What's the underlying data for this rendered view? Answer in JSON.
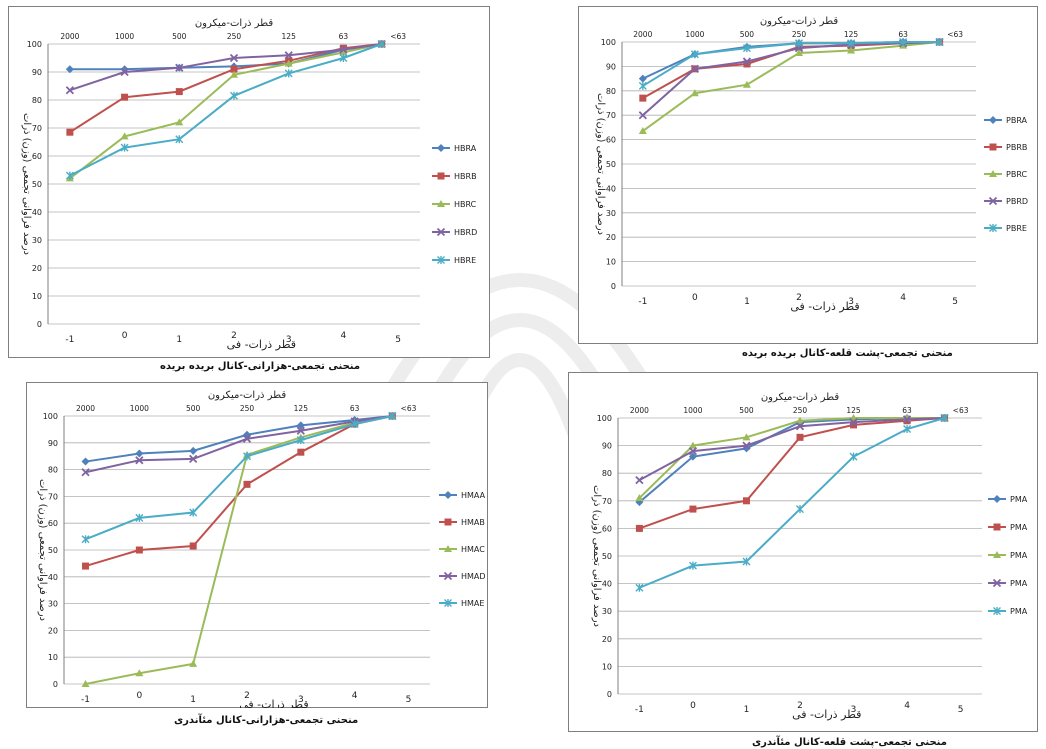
{
  "chart_data": [
    {
      "type": "line",
      "top_axis_title": "قطر ذرات-میکرون",
      "bottom_axis_title": "قطر ذرات- فی",
      "ylabel": "درصد فراوانی تجمعی (وزن) ذرات",
      "caption": "منحنی تجمعی-هزارانی-کانال بریده بریده",
      "top_ticks": [
        "2000",
        "1000",
        "500",
        "250",
        "125",
        "63",
        "<63"
      ],
      "x": [
        -1,
        0,
        1,
        2,
        3,
        4,
        5
      ],
      "x_ticks": [
        "-1",
        "0",
        "1",
        "2",
        "3",
        "4",
        "5"
      ],
      "ylim": [
        0,
        100
      ],
      "y_ticks": [
        "0",
        "10",
        "20",
        "30",
        "40",
        "50",
        "60",
        "70",
        "80",
        "90",
        "100"
      ],
      "grid": true,
      "legend_position": "right",
      "series": [
        {
          "name": "HBRA",
          "color": "#4f81bd",
          "marker": "diamond",
          "x": [
            -1,
            0,
            1,
            2,
            3,
            4,
            4.7
          ],
          "values": [
            91,
            91,
            91.5,
            92,
            93,
            98,
            100
          ]
        },
        {
          "name": "HBRB",
          "color": "#c0504d",
          "marker": "square",
          "x": [
            -1,
            0,
            1,
            2,
            3,
            4,
            4.7
          ],
          "values": [
            68.5,
            81,
            83,
            91,
            94,
            98.5,
            100
          ]
        },
        {
          "name": "HBRC",
          "color": "#9bbb59",
          "marker": "triangle",
          "x": [
            -1,
            0,
            1,
            2,
            3,
            4,
            4.7
          ],
          "values": [
            52,
            67,
            72,
            89,
            93,
            97,
            100
          ]
        },
        {
          "name": "HBRD",
          "color": "#8064a2",
          "marker": "cross",
          "x": [
            -1,
            0,
            1,
            2,
            3,
            4,
            4.7
          ],
          "values": [
            83.5,
            90,
            91.5,
            95,
            96,
            98,
            100
          ]
        },
        {
          "name": "HBRE",
          "color": "#4bacc6",
          "marker": "star",
          "x": [
            -1,
            0,
            1,
            2,
            3,
            4,
            4.7
          ],
          "values": [
            53,
            63,
            66,
            81.5,
            89.5,
            95,
            100
          ]
        }
      ]
    },
    {
      "type": "line",
      "top_axis_title": "قطر ذرات-میکرون",
      "bottom_axis_title": "قطر ذرات- فی",
      "ylabel": "درصد فراوانی تجمعی (وزن) ذرات",
      "caption": "منحنی تجمعی-پشت قلعه-کانال بریده بریده",
      "top_ticks": [
        "2000",
        "1000",
        "500",
        "250",
        "125",
        "63",
        "<63"
      ],
      "x": [
        -1,
        0,
        1,
        2,
        3,
        4,
        5
      ],
      "x_ticks": [
        "-1",
        "0",
        "1",
        "2",
        "3",
        "4",
        "5"
      ],
      "ylim": [
        0,
        100
      ],
      "y_ticks": [
        "0",
        "10",
        "20",
        "30",
        "40",
        "50",
        "60",
        "70",
        "80",
        "90",
        "100"
      ],
      "grid": true,
      "legend_position": "right",
      "series": [
        {
          "name": "PBRA",
          "color": "#4f81bd",
          "marker": "diamond",
          "x": [
            -1,
            0,
            1,
            2,
            3,
            4,
            4.7
          ],
          "values": [
            85,
            95,
            98,
            99.5,
            99.5,
            100,
            100
          ]
        },
        {
          "name": "PBRB",
          "color": "#c0504d",
          "marker": "square",
          "x": [
            -1,
            0,
            1,
            2,
            3,
            4,
            4.7
          ],
          "values": [
            77,
            89,
            91,
            98,
            98.5,
            99.5,
            100
          ]
        },
        {
          "name": "PBRC",
          "color": "#9bbb59",
          "marker": "triangle",
          "x": [
            -1,
            0,
            1,
            2,
            3,
            4,
            4.7
          ],
          "values": [
            63.5,
            79,
            82.5,
            95.5,
            96.5,
            98.5,
            100
          ]
        },
        {
          "name": "PBRD",
          "color": "#8064a2",
          "marker": "cross",
          "x": [
            -1,
            0,
            1,
            2,
            3,
            4,
            4.7
          ],
          "values": [
            70,
            89,
            92,
            97.5,
            99,
            99.5,
            100
          ]
        },
        {
          "name": "PBRE",
          "color": "#4bacc6",
          "marker": "star",
          "x": [
            -1,
            0,
            1,
            2,
            3,
            4,
            4.7
          ],
          "values": [
            82,
            95,
            97.5,
            99.5,
            99.5,
            100,
            100
          ]
        }
      ]
    },
    {
      "type": "line",
      "top_axis_title": "قطر ذرات-میکرون",
      "bottom_axis_title": "قطر ذرات- فی",
      "ylabel": "درصد فراوانی تجمعی (وزن) ذرات",
      "caption": "منحنی تجمعی-هزارانی-کانال مئآندری",
      "top_ticks": [
        "2000",
        "1000",
        "500",
        "250",
        "125",
        "63",
        "<63"
      ],
      "x": [
        -1,
        0,
        1,
        2,
        3,
        4,
        5
      ],
      "x_ticks": [
        "-1",
        "0",
        "1",
        "2",
        "3",
        "4",
        "5"
      ],
      "ylim": [
        0,
        100
      ],
      "y_ticks": [
        "0",
        "10",
        "20",
        "30",
        "40",
        "50",
        "60",
        "70",
        "80",
        "90",
        "100"
      ],
      "grid": true,
      "legend_position": "right",
      "series": [
        {
          "name": "HMAA",
          "color": "#4f81bd",
          "marker": "diamond",
          "x": [
            -1,
            0,
            1,
            2,
            3,
            4,
            4.7
          ],
          "values": [
            83,
            86,
            87,
            93,
            96.5,
            98.5,
            100
          ]
        },
        {
          "name": "HMAB",
          "color": "#c0504d",
          "marker": "square",
          "x": [
            -1,
            0,
            1,
            2,
            3,
            4,
            4.7
          ],
          "values": [
            44,
            50,
            51.5,
            74.5,
            86.5,
            97,
            100
          ]
        },
        {
          "name": "HMAC",
          "color": "#9bbb59",
          "marker": "triangle",
          "x": [
            -1,
            0,
            1,
            2,
            3,
            4,
            4.7
          ],
          "values": [
            0,
            4,
            7.5,
            85.5,
            92,
            97.5,
            100
          ]
        },
        {
          "name": "HMAD",
          "color": "#8064a2",
          "marker": "cross",
          "x": [
            -1,
            0,
            1,
            2,
            3,
            4,
            4.7
          ],
          "values": [
            79,
            83.5,
            84,
            91.5,
            94.5,
            98,
            100
          ]
        },
        {
          "name": "HMAE",
          "color": "#4bacc6",
          "marker": "star",
          "x": [
            -1,
            0,
            1,
            2,
            3,
            4,
            4.7
          ],
          "values": [
            54,
            62,
            64,
            85,
            91,
            97,
            100
          ]
        }
      ]
    },
    {
      "type": "line",
      "top_axis_title": "قطر ذرات-میکرون",
      "bottom_axis_title": "قطر ذرات- فی",
      "ylabel": "درصد فراوانی تجمعی (وزن) ذرات",
      "caption": "منحنی تجمعی-پشت قلعه-کانال مئآندری",
      "top_ticks": [
        "2000",
        "1000",
        "500",
        "250",
        "125",
        "63",
        "<63"
      ],
      "x": [
        -1,
        0,
        1,
        2,
        3,
        4,
        5
      ],
      "x_ticks": [
        "-1",
        "0",
        "1",
        "2",
        "3",
        "4",
        "5"
      ],
      "ylim": [
        0,
        100
      ],
      "y_ticks": [
        "0",
        "10",
        "20",
        "30",
        "40",
        "50",
        "60",
        "70",
        "80",
        "90",
        "100"
      ],
      "grid": true,
      "legend_position": "right",
      "series": [
        {
          "name": "PMA",
          "color": "#4f81bd",
          "marker": "diamond",
          "x": [
            -1,
            0,
            1,
            2,
            3,
            4,
            4.7
          ],
          "values": [
            69.5,
            86,
            89,
            98.5,
            99.5,
            100,
            100
          ]
        },
        {
          "name": "PMA",
          "color": "#c0504d",
          "marker": "square",
          "x": [
            -1,
            0,
            1,
            2,
            3,
            4,
            4.7
          ],
          "values": [
            60,
            67,
            70,
            93,
            97.5,
            99,
            100
          ]
        },
        {
          "name": "PMA",
          "color": "#9bbb59",
          "marker": "triangle",
          "x": [
            -1,
            0,
            1,
            2,
            3,
            4,
            4.7
          ],
          "values": [
            71,
            90,
            93,
            99,
            100,
            100,
            100
          ]
        },
        {
          "name": "PMA",
          "color": "#8064a2",
          "marker": "cross",
          "x": [
            -1,
            0,
            1,
            2,
            3,
            4,
            4.7
          ],
          "values": [
            77.5,
            88,
            90,
            97,
            98.5,
            99.5,
            100
          ]
        },
        {
          "name": "PMA",
          "color": "#4bacc6",
          "marker": "star",
          "x": [
            -1,
            0,
            1,
            2,
            3,
            4,
            4.7
          ],
          "values": [
            38.5,
            46.5,
            48,
            67,
            86,
            96,
            100
          ]
        }
      ]
    }
  ]
}
